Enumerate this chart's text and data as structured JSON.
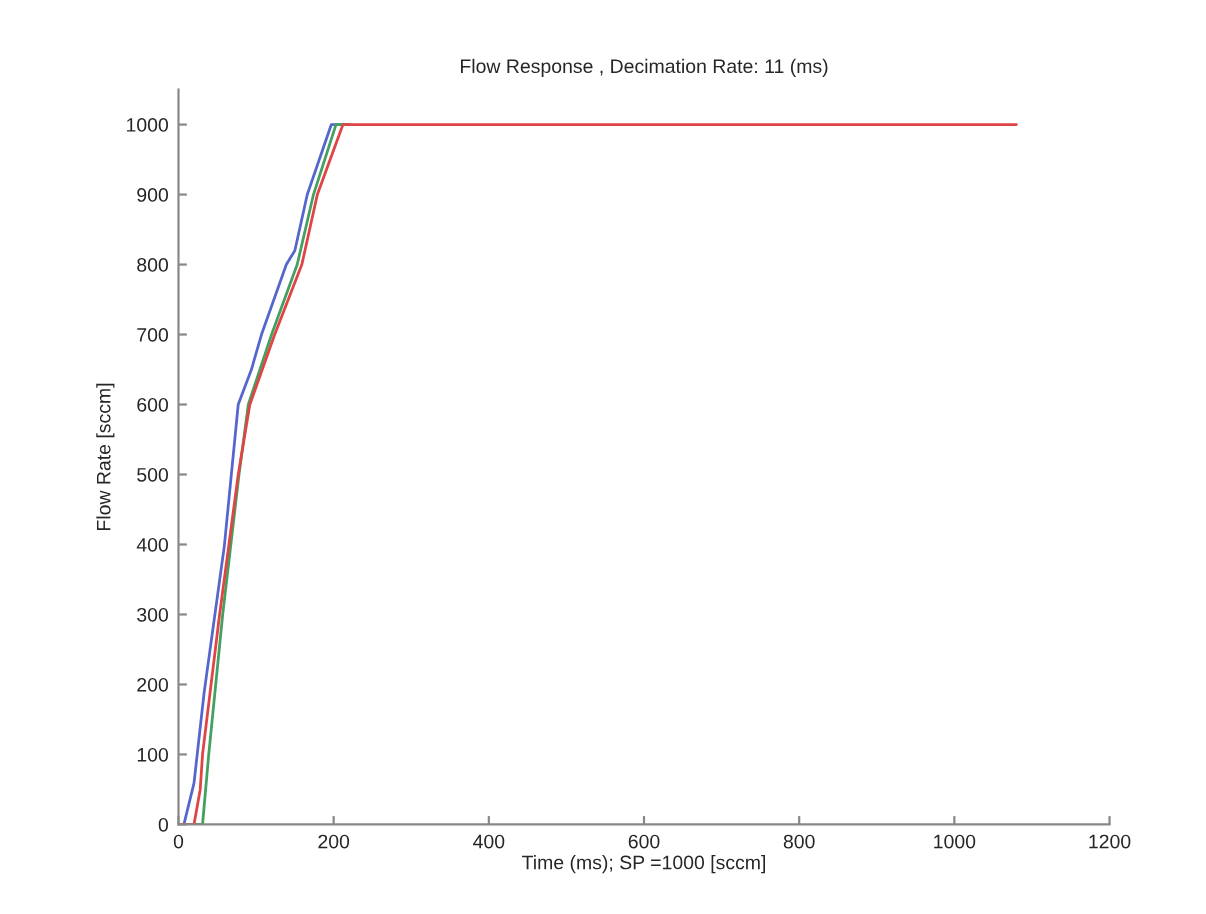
{
  "chart_data": {
    "type": "line",
    "title": "Flow Response , Decimation Rate: 11 (ms)",
    "xlabel": "Time (ms); SP =1000 [sccm]",
    "ylabel": "Flow Rate [sccm]",
    "xlim": [
      0,
      1200
    ],
    "ylim": [
      0,
      1050
    ],
    "xticks": [
      0,
      200,
      400,
      600,
      800,
      1000,
      1200
    ],
    "yticks": [
      0,
      100,
      200,
      300,
      400,
      500,
      600,
      700,
      800,
      900,
      1000
    ],
    "grid": false,
    "legend": false,
    "line_style": "solid",
    "series": [
      {
        "color": "#5566cc",
        "x": [
          0,
          7,
          20,
          33,
          59,
          77,
          94,
          107,
          139,
          150,
          166,
          197,
          210,
          220
        ],
        "values": [
          0,
          0,
          59,
          188,
          397,
          600,
          650,
          700,
          800,
          820,
          900,
          1000,
          1000,
          1000
        ]
      },
      {
        "color": "#44a060",
        "x": [
          0,
          31,
          39,
          57,
          78,
          90,
          120,
          153,
          174,
          203,
          215,
          220
        ],
        "values": [
          0,
          0,
          100,
          300,
          500,
          600,
          700,
          800,
          900,
          1000,
          1000,
          1000
        ]
      },
      {
        "color": "#e04444",
        "x": [
          0,
          20,
          28,
          31,
          53,
          77,
          92,
          124,
          159,
          179,
          212,
          225,
          1080
        ],
        "values": [
          0,
          0,
          50,
          100,
          300,
          500,
          600,
          700,
          800,
          900,
          1000,
          1000,
          1000
        ]
      }
    ]
  }
}
